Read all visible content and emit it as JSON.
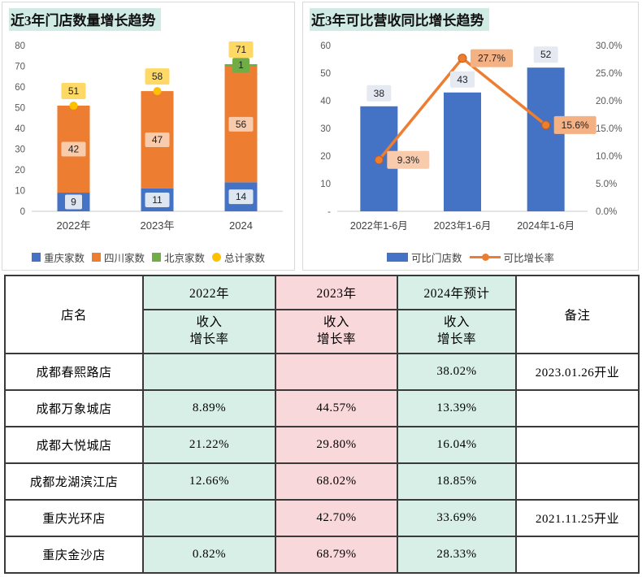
{
  "colors": {
    "blue": "#4472c4",
    "orange": "#ed7d31",
    "green": "#70ad47",
    "yellow": "#ffc000",
    "label_yellow": "#ffd966",
    "label_light_orange": "#f8cbad",
    "label_orange": "#f4b183",
    "label_light_blue": "#dde6f1",
    "title_highlight": "#d0ebe4",
    "table_mint": "#d8efe8",
    "table_pink": "#f9d8dc",
    "axis_text": "#595959",
    "axis_line": "#c8c8c8",
    "table_border": "#3a3a3a"
  },
  "chart_data": [
    {
      "type": "bar",
      "stacked": true,
      "title": "近3年门店数量增长趋势",
      "categories": [
        "2022年",
        "2023年",
        "2024"
      ],
      "series": [
        {
          "name": "重庆家数",
          "marker": "square",
          "color": "#4472c4",
          "label_bg": "#dde6f1",
          "values": [
            9,
            11,
            14
          ]
        },
        {
          "name": "四川家数",
          "marker": "square",
          "color": "#ed7d31",
          "label_bg": "#f8cbad",
          "values": [
            42,
            47,
            56
          ]
        },
        {
          "name": "北京家数",
          "marker": "square",
          "color": "#70ad47",
          "label_bg": "#70ad47",
          "values": [
            0,
            0,
            1
          ]
        },
        {
          "name": "总计家数",
          "marker": "circle",
          "color": "#ffc000",
          "label_bg": "#ffd966",
          "role": "total",
          "values": [
            51,
            58,
            71
          ]
        }
      ],
      "ylim": [
        0,
        80
      ],
      "yticks": [
        0,
        10,
        20,
        30,
        40,
        50,
        60,
        70,
        80
      ],
      "grid": false,
      "legend_position": "bottom"
    },
    {
      "type": "bar+line",
      "title": "近3年可比营收同比增长趋势",
      "categories": [
        "2022年1-6月",
        "2023年1-6月",
        "2024年1-6月"
      ],
      "series": [
        {
          "name": "可比门店数",
          "type": "bar",
          "marker": "bar",
          "axis": "left",
          "color": "#4472c4",
          "label_bg": "#e4e9f2",
          "values": [
            38,
            43,
            52
          ]
        },
        {
          "name": "可比增长率",
          "type": "line",
          "marker": "line",
          "axis": "right",
          "color": "#ed7d31",
          "values": [
            9.3,
            27.7,
            15.6
          ],
          "labels": [
            "9.3%",
            "27.7%",
            "15.6%"
          ],
          "label_bg": [
            "#f8cbad",
            "#f4b183",
            "#f4b183"
          ]
        }
      ],
      "ylim_left": [
        0,
        60
      ],
      "yticks_left": [
        "-",
        "10",
        "20",
        "30",
        "40",
        "50",
        "60"
      ],
      "ylim_right": [
        0,
        30
      ],
      "yticks_right": [
        "0.0%",
        "5.0%",
        "10.0%",
        "15.0%",
        "20.0%",
        "25.0%",
        "30.0%"
      ],
      "grid": false,
      "legend_position": "bottom"
    }
  ],
  "table": {
    "header": {
      "col_store": "店名",
      "col_2022": "2022年",
      "col_2023": "2023年",
      "col_2024": "2024年预计",
      "col_note": "备注",
      "sub_line1": "收入",
      "sub_line2": "增长率"
    },
    "rows": [
      {
        "store": "成都春熙路店",
        "y2022": "",
        "y2023": "",
        "y2024": "38.02%",
        "note": "2023.01.26开业"
      },
      {
        "store": "成都万象城店",
        "y2022": "8.89%",
        "y2023": "44.57%",
        "y2024": "13.39%",
        "note": ""
      },
      {
        "store": "成都大悦城店",
        "y2022": "21.22%",
        "y2023": "29.80%",
        "y2024": "16.04%",
        "note": ""
      },
      {
        "store": "成都龙湖滨江店",
        "y2022": "12.66%",
        "y2023": "68.02%",
        "y2024": "18.85%",
        "note": ""
      },
      {
        "store": "重庆光环店",
        "y2022": "",
        "y2023": "42.70%",
        "y2024": "33.69%",
        "note": "2021.11.25开业"
      },
      {
        "store": "重庆金沙店",
        "y2022": "0.82%",
        "y2023": "68.79%",
        "y2024": "28.33%",
        "note": ""
      }
    ]
  }
}
